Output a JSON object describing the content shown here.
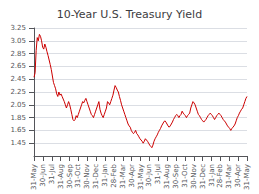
{
  "chart_data": {
    "type": "line",
    "title": "10-Year U.S. Treasury Yield",
    "color": "#cc0000",
    "grid": true,
    "xlim": [
      0,
      24
    ],
    "xticks": [
      {
        "value": 0,
        "label": "31-May"
      },
      {
        "value": 1,
        "label": "30-Jun"
      },
      {
        "value": 2,
        "label": "31-Jul"
      },
      {
        "value": 3,
        "label": "31-Aug"
      },
      {
        "value": 4,
        "label": "30-Sep"
      },
      {
        "value": 5,
        "label": "31-Oct"
      },
      {
        "value": 6,
        "label": "30-Nov"
      },
      {
        "value": 7,
        "label": "31-Dec"
      },
      {
        "value": 8,
        "label": "31-Jan"
      },
      {
        "value": 9,
        "label": "28-Feb"
      },
      {
        "value": 10,
        "label": "31-Mar"
      },
      {
        "value": 11,
        "label": "30-Apr"
      },
      {
        "value": 12,
        "label": "31-May"
      },
      {
        "value": 13,
        "label": "30-Jun"
      },
      {
        "value": 14,
        "label": "31-Jul"
      },
      {
        "value": 15,
        "label": "31-Aug"
      },
      {
        "value": 16,
        "label": "30-Sep"
      },
      {
        "value": 17,
        "label": "31-Oct"
      },
      {
        "value": 18,
        "label": "30-Nov"
      },
      {
        "value": 19,
        "label": "31-Dec"
      },
      {
        "value": 20,
        "label": "31-Jan"
      },
      {
        "value": 21,
        "label": "28-Feb"
      },
      {
        "value": 22,
        "label": "31-Mar"
      },
      {
        "value": 23,
        "label": "30-Apr"
      },
      {
        "value": 24,
        "label": "31-May"
      }
    ],
    "ylim": [
      1.25,
      3.25
    ],
    "yticks": [
      1.45,
      1.65,
      1.85,
      2.05,
      2.25,
      2.45,
      2.65,
      2.85,
      3.05,
      3.25
    ],
    "values": [
      2.48,
      2.55,
      2.9,
      3.1,
      3.05,
      3.15,
      3.12,
      3.05,
      2.95,
      2.92,
      3.0,
      2.95,
      2.88,
      2.82,
      2.75,
      2.68,
      2.6,
      2.5,
      2.4,
      2.35,
      2.3,
      2.22,
      2.18,
      2.25,
      2.2,
      2.22,
      2.18,
      2.14,
      2.1,
      2.05,
      2.0,
      2.05,
      2.1,
      2.05,
      1.98,
      1.9,
      1.82,
      1.8,
      1.82,
      1.88,
      1.85,
      1.9,
      1.95,
      2.0,
      2.05,
      2.1,
      2.08,
      2.12,
      2.15,
      2.1,
      2.05,
      2.0,
      1.95,
      1.9,
      1.88,
      1.85,
      1.9,
      1.95,
      2.0,
      2.05,
      2.1,
      1.98,
      1.92,
      1.88,
      1.85,
      1.9,
      1.95,
      2.0,
      2.1,
      2.08,
      2.05,
      2.1,
      2.15,
      2.2,
      2.28,
      2.35,
      2.32,
      2.28,
      2.25,
      2.18,
      2.12,
      2.05,
      2.0,
      1.95,
      1.9,
      1.85,
      1.8,
      1.75,
      1.72,
      1.7,
      1.65,
      1.62,
      1.6,
      1.62,
      1.65,
      1.6,
      1.58,
      1.55,
      1.52,
      1.5,
      1.48,
      1.45,
      1.48,
      1.52,
      1.5,
      1.48,
      1.45,
      1.42,
      1.4,
      1.38,
      1.42,
      1.48,
      1.52,
      1.55,
      1.58,
      1.62,
      1.65,
      1.68,
      1.72,
      1.75,
      1.78,
      1.8,
      1.78,
      1.75,
      1.72,
      1.7,
      1.72,
      1.75,
      1.78,
      1.82,
      1.85,
      1.88,
      1.9,
      1.88,
      1.85,
      1.88,
      1.9,
      1.95,
      1.92,
      1.9,
      1.88,
      1.85,
      1.88,
      1.9,
      1.92,
      2.0,
      2.05,
      2.1,
      2.08,
      2.05,
      2.0,
      1.95,
      1.9,
      1.88,
      1.85,
      1.82,
      1.8,
      1.78,
      1.8,
      1.82,
      1.85,
      1.88,
      1.9,
      1.92,
      1.9,
      1.88,
      1.85,
      1.82,
      1.85,
      1.88,
      1.9,
      1.92,
      1.9,
      1.88,
      1.85,
      1.82,
      1.8,
      1.78,
      1.75,
      1.72,
      1.7,
      1.68,
      1.65,
      1.68,
      1.7,
      1.72,
      1.75,
      1.8,
      1.85,
      1.88,
      1.92,
      1.95,
      1.98,
      2.0,
      2.05,
      2.1,
      2.15,
      2.18
    ]
  }
}
